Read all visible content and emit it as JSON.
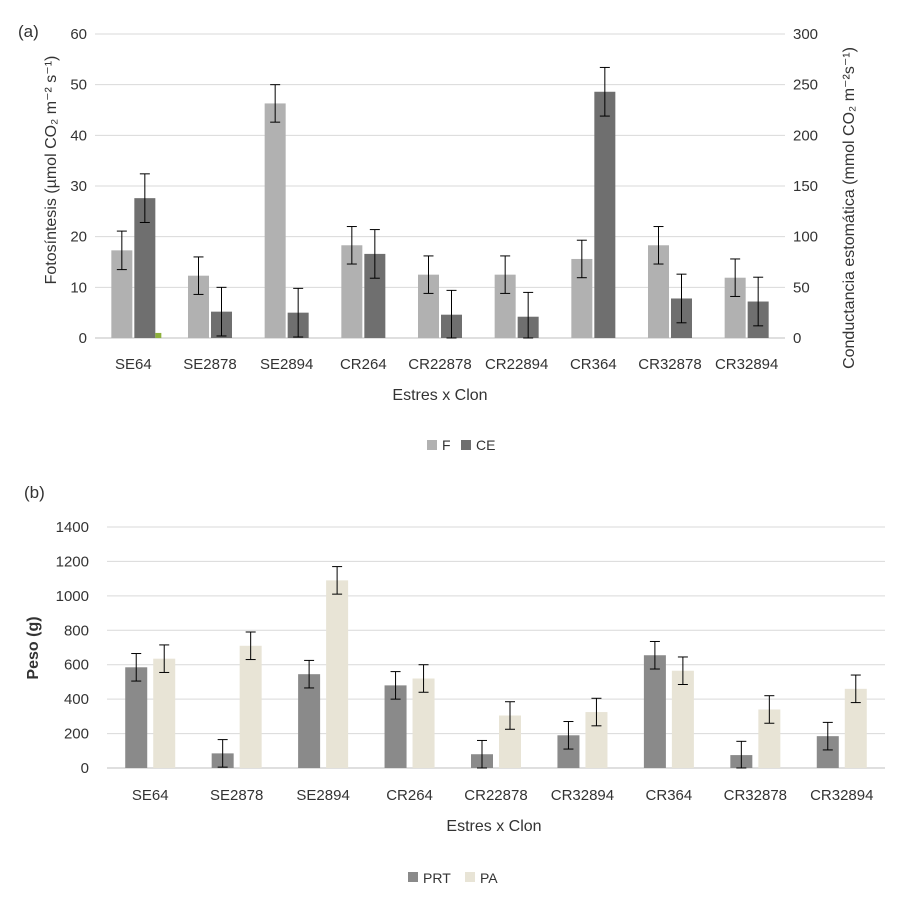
{
  "colors": {
    "F": "#b1b1b1",
    "CE": "#6f6f6f",
    "PRT": "#8a8a8a",
    "PA": "#e8e4d6",
    "grid": "#d9d9d9",
    "axis": "#bfbfbf",
    "marker": "#8db03c"
  },
  "chart_data": [
    {
      "type": "bar",
      "panel_label": "(a)",
      "xlabel": "Estres x Clon",
      "ylabel_left": "Fotosíntesis (µmol CO₂ m⁻² s⁻¹)",
      "ylabel_right": "Conductancia estomática (mmol CO₂ m⁻²s⁻¹)",
      "ylim_left": [
        0,
        60
      ],
      "ylim_right": [
        0,
        300
      ],
      "yticks_left": [
        "0",
        "10",
        "20",
        "30",
        "40",
        "50",
        "60"
      ],
      "yticks_right": [
        "0",
        "50",
        "100",
        "150",
        "200",
        "250",
        "300"
      ],
      "grid": true,
      "legend_position": "bottom",
      "categories": [
        "SE64",
        "SE2878",
        "SE2894",
        "CR264",
        "CR22878",
        "CR22894",
        "CR364",
        "CR32878",
        "CR32894"
      ],
      "series": [
        {
          "name": "F",
          "axis": "left",
          "values": [
            17.3,
            12.3,
            46.3,
            18.3,
            12.5,
            12.5,
            15.6,
            18.3,
            11.9
          ],
          "errors": [
            3.8,
            3.7,
            3.7,
            3.7,
            3.7,
            3.7,
            3.7,
            3.7,
            3.7
          ]
        },
        {
          "name": "CE",
          "axis": "right",
          "values": [
            138,
            26,
            25,
            83,
            23,
            21,
            243,
            39,
            36
          ],
          "errors": [
            24,
            24,
            24,
            24,
            24,
            24,
            24,
            24,
            24
          ]
        }
      ],
      "annotation": {
        "category": "SE64",
        "value": 1,
        "desc": "small green marker beside CE bar"
      }
    },
    {
      "type": "bar",
      "panel_label": "(b)",
      "xlabel": "Estres x Clon",
      "ylabel": "Peso (g)",
      "ylim": [
        0,
        1400
      ],
      "yticks": [
        "0",
        "200",
        "400",
        "600",
        "800",
        "1000",
        "1200",
        "1400"
      ],
      "grid": true,
      "legend_position": "bottom",
      "categories": [
        "SE64",
        "SE2878",
        "SE2894",
        "CR264",
        "CR22878",
        "CR32894",
        "CR364",
        "CR32878",
        "CR32894"
      ],
      "series": [
        {
          "name": "PRT",
          "values": [
            585,
            85,
            545,
            480,
            80,
            190,
            655,
            75,
            185
          ],
          "errors": [
            80,
            80,
            80,
            80,
            80,
            80,
            80,
            80,
            80
          ]
        },
        {
          "name": "PA",
          "values": [
            635,
            710,
            1090,
            520,
            305,
            325,
            565,
            340,
            460
          ],
          "errors": [
            80,
            80,
            80,
            80,
            80,
            80,
            80,
            80,
            80
          ]
        }
      ]
    }
  ]
}
